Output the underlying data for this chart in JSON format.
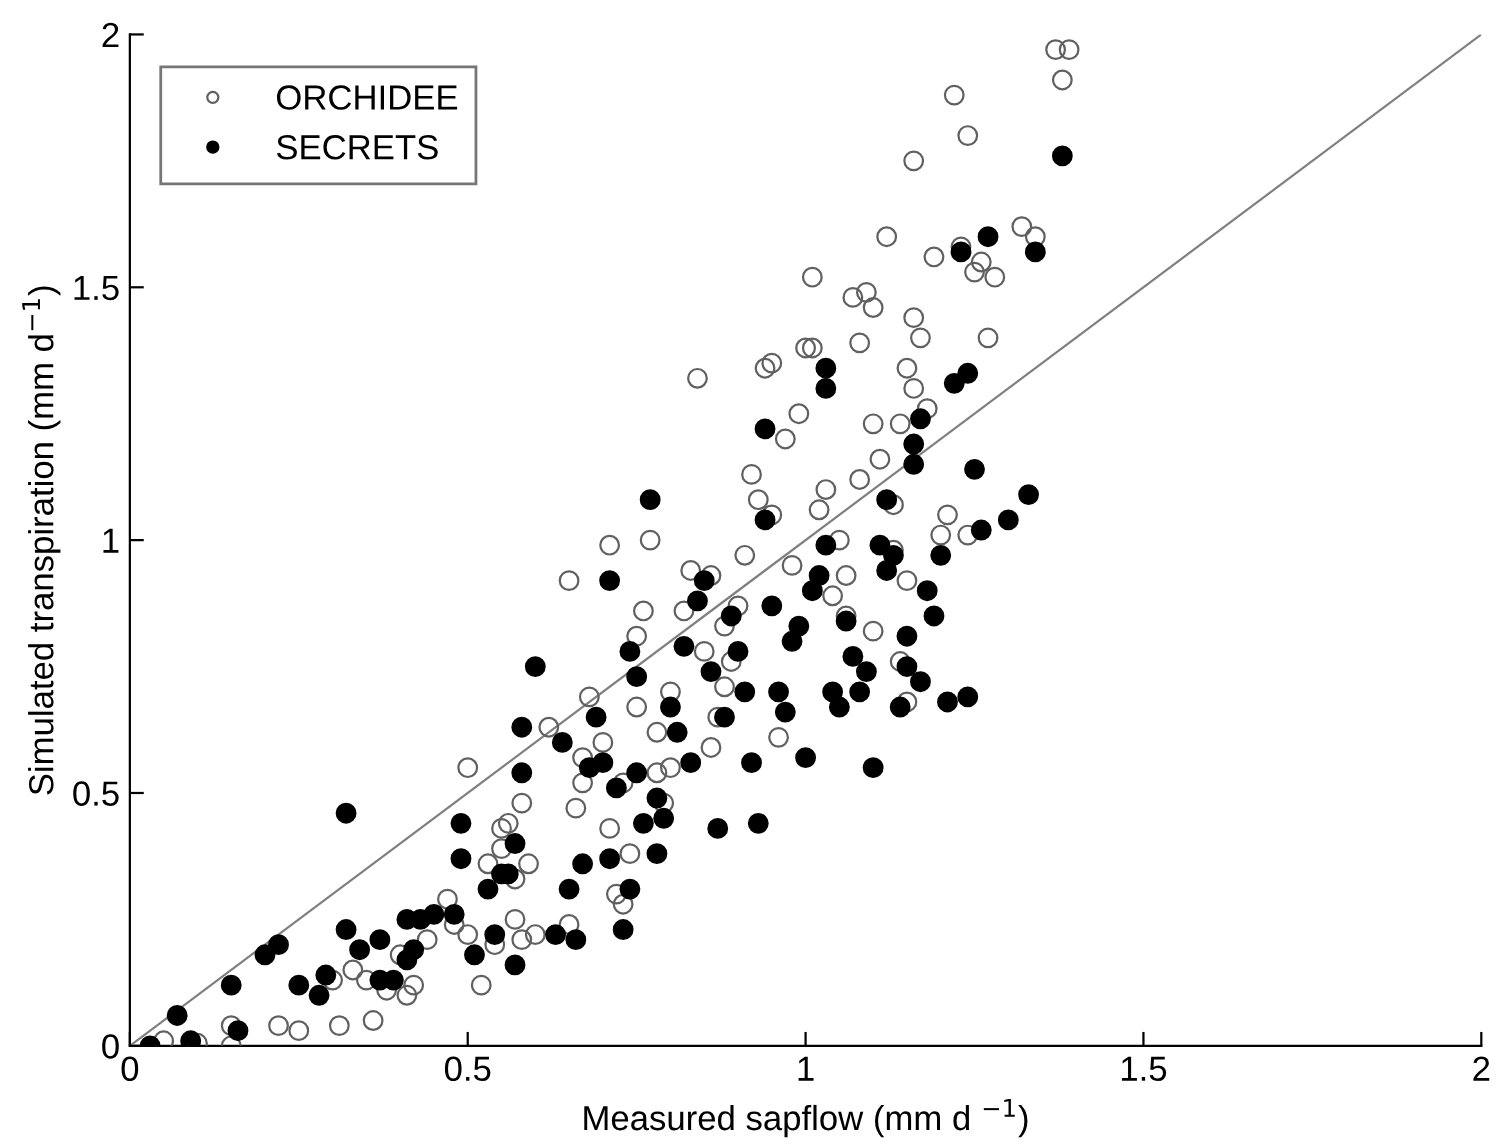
{
  "chart_data": {
    "type": "scatter",
    "xlabel": "Measured sapflow (mm d $^{−1}$)",
    "ylabel": "Simulated transpiration (mm d$^{−1}$)",
    "xlim": [
      0,
      2
    ],
    "ylim": [
      0,
      2
    ],
    "xticks": [
      0,
      0.5,
      1,
      1.5,
      2
    ],
    "yticks": [
      0,
      0.5,
      1,
      1.5,
      2
    ],
    "grid": false,
    "legend": "top left",
    "marker": "circle",
    "series": [
      {
        "name": "ORCHIDEE",
        "color": "#606060",
        "x": [
          0.05,
          0.1,
          0.15,
          0.15,
          0.22,
          0.25,
          0.3,
          0.31,
          0.33,
          0.35,
          0.36,
          0.38,
          0.4,
          0.41,
          0.42,
          0.44,
          0.47,
          0.48,
          0.5,
          0.5,
          0.52,
          0.53,
          0.54,
          0.55,
          0.55,
          0.56,
          0.57,
          0.57,
          0.58,
          0.58,
          0.59,
          0.6,
          0.62,
          0.65,
          0.65,
          0.66,
          0.67,
          0.67,
          0.68,
          0.7,
          0.71,
          0.71,
          0.72,
          0.73,
          0.73,
          0.74,
          0.75,
          0.75,
          0.76,
          0.77,
          0.78,
          0.78,
          0.79,
          0.8,
          0.8,
          0.82,
          0.83,
          0.84,
          0.85,
          0.86,
          0.86,
          0.87,
          0.88,
          0.88,
          0.89,
          0.9,
          0.91,
          0.92,
          0.93,
          0.94,
          0.95,
          0.95,
          0.96,
          0.97,
          0.98,
          0.99,
          1.0,
          1.01,
          1.01,
          1.02,
          1.03,
          1.04,
          1.05,
          1.06,
          1.07,
          1.08,
          1.08,
          1.09,
          1.1,
          1.1,
          1.1,
          1.11,
          1.12,
          1.13,
          1.14,
          1.14,
          1.15,
          1.15,
          1.16,
          1.16,
          1.16,
          1.17,
          1.18,
          1.19,
          1.2,
          1.21,
          1.22,
          1.23,
          1.24,
          1.24,
          1.25,
          1.26,
          1.27,
          1.28,
          1.32,
          1.34,
          1.37,
          1.39,
          1.38,
          1.15,
          1.13,
          1.06
        ],
        "values": [
          0.01,
          0.005,
          0.0,
          0.04,
          0.04,
          0.03,
          0.13,
          0.04,
          0.15,
          0.13,
          0.05,
          0.11,
          0.18,
          0.1,
          0.12,
          0.21,
          0.29,
          0.24,
          0.22,
          0.55,
          0.12,
          0.36,
          0.2,
          0.43,
          0.39,
          0.44,
          0.33,
          0.25,
          0.21,
          0.48,
          0.36,
          0.22,
          0.63,
          0.92,
          0.24,
          0.47,
          0.52,
          0.57,
          0.69,
          0.6,
          0.43,
          0.99,
          0.3,
          0.28,
          0.52,
          0.38,
          0.67,
          0.81,
          0.86,
          1.0,
          0.62,
          0.54,
          0.48,
          0.7,
          0.55,
          0.86,
          0.94,
          1.32,
          0.78,
          0.93,
          0.59,
          0.65,
          0.83,
          0.71,
          0.76,
          0.87,
          0.97,
          1.13,
          1.08,
          1.34,
          1.35,
          1.05,
          0.61,
          1.2,
          0.95,
          1.25,
          1.38,
          1.52,
          1.38,
          1.06,
          1.1,
          0.89,
          1.0,
          0.85,
          1.48,
          1.12,
          1.39,
          1.49,
          1.46,
          0.82,
          1.23,
          1.16,
          1.6,
          1.07,
          1.23,
          0.76,
          0.68,
          1.34,
          1.3,
          1.75,
          1.44,
          1.4,
          1.26,
          1.56,
          1.01,
          1.05,
          1.88,
          1.58,
          1.8,
          1.01,
          1.53,
          1.55,
          1.4,
          1.52,
          1.62,
          1.6,
          1.97,
          1.97,
          1.91,
          0.92,
          0.98,
          0.93
        ]
      },
      {
        "name": "SECRETS",
        "color": "#000000",
        "x": [
          0.03,
          0.07,
          0.09,
          0.15,
          0.16,
          0.2,
          0.22,
          0.25,
          0.28,
          0.29,
          0.32,
          0.32,
          0.34,
          0.37,
          0.37,
          0.39,
          0.41,
          0.41,
          0.42,
          0.43,
          0.45,
          0.48,
          0.49,
          0.49,
          0.51,
          0.53,
          0.54,
          0.55,
          0.56,
          0.57,
          0.57,
          0.58,
          0.58,
          0.6,
          0.63,
          0.64,
          0.65,
          0.66,
          0.67,
          0.68,
          0.69,
          0.7,
          0.71,
          0.71,
          0.72,
          0.73,
          0.74,
          0.74,
          0.75,
          0.75,
          0.76,
          0.77,
          0.78,
          0.78,
          0.79,
          0.8,
          0.81,
          0.82,
          0.83,
          0.84,
          0.85,
          0.86,
          0.87,
          0.88,
          0.89,
          0.9,
          0.92,
          0.93,
          0.94,
          0.94,
          0.95,
          0.96,
          0.97,
          0.98,
          0.99,
          1.0,
          1.01,
          1.02,
          1.03,
          1.03,
          1.04,
          1.05,
          1.06,
          1.07,
          1.08,
          1.09,
          1.1,
          1.11,
          1.12,
          1.13,
          1.14,
          1.15,
          1.15,
          1.16,
          1.16,
          1.17,
          1.17,
          1.18,
          1.19,
          1.2,
          1.21,
          1.22,
          1.23,
          1.24,
          1.24,
          1.25,
          1.26,
          1.27,
          1.3,
          1.33,
          1.34,
          1.38,
          1.12,
          1.03,
          0.91
        ],
        "values": [
          0.0,
          0.06,
          0.01,
          0.12,
          0.03,
          0.18,
          0.2,
          0.12,
          0.1,
          0.14,
          0.46,
          0.23,
          0.19,
          0.21,
          0.13,
          0.13,
          0.25,
          0.17,
          0.19,
          0.25,
          0.26,
          0.26,
          0.37,
          0.44,
          0.18,
          0.31,
          0.22,
          0.34,
          0.34,
          0.16,
          0.4,
          0.54,
          0.63,
          0.75,
          0.22,
          0.6,
          0.31,
          0.21,
          0.36,
          0.55,
          0.65,
          0.56,
          0.37,
          0.92,
          0.51,
          0.23,
          0.31,
          0.78,
          0.73,
          0.54,
          0.44,
          1.08,
          0.38,
          0.49,
          0.45,
          0.67,
          0.62,
          0.79,
          0.56,
          0.88,
          0.92,
          0.74,
          0.43,
          0.65,
          0.85,
          0.78,
          0.56,
          0.44,
          1.22,
          1.04,
          0.87,
          0.7,
          0.66,
          0.8,
          0.83,
          0.57,
          0.9,
          0.93,
          1.3,
          1.34,
          0.7,
          0.67,
          0.84,
          0.77,
          0.7,
          0.74,
          0.55,
          0.99,
          0.94,
          0.97,
          0.67,
          0.75,
          0.81,
          1.15,
          1.19,
          1.24,
          0.72,
          0.9,
          0.85,
          0.97,
          0.68,
          1.31,
          1.57,
          1.33,
          0.69,
          1.14,
          1.02,
          1.6,
          1.04,
          1.09,
          1.57,
          1.76,
          1.08,
          0.99,
          0.7
        ]
      },
      {
        "type": "line",
        "marker": "none",
        "color": "#808080",
        "x": [
          0,
          2
        ],
        "values": [
          0,
          2
        ]
      }
    ]
  }
}
